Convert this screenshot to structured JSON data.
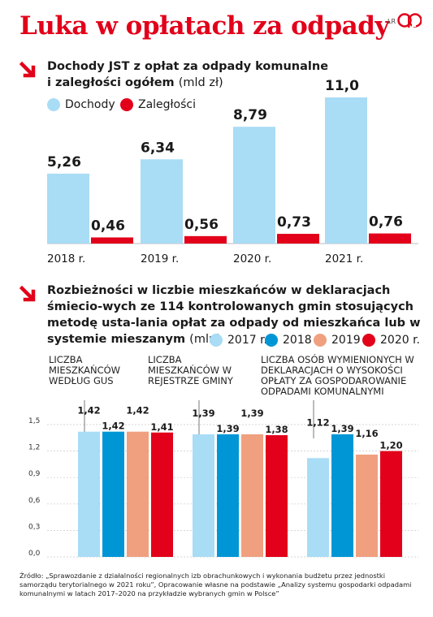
{
  "title": "Luka w opłatach za odpady",
  "credit": "LR",
  "colors": {
    "accent": "#e2001a",
    "light_blue": "#a9dcf5",
    "blue": "#0096d6",
    "salmon": "#f0a07f",
    "red": "#e2001a"
  },
  "section1": {
    "heading_bold_1": "Dochody JST z opłat za odpady komunalne",
    "heading_bold_2": "i zaległości ogółem",
    "heading_unit": "(mld zł)",
    "legend": [
      "Dochody",
      "Zaległości"
    ]
  },
  "section2": {
    "heading_bold": "Rozbieżności w liczbie mieszkańców w deklaracjach śmiecio-wych ze 114 kontrolowanych gmin stosujących metodę usta-lania opłat za odpady od mieszkańca lub w systemie mieszanym",
    "heading_unit": "(mln)",
    "legend": [
      "2017 r.",
      "2018 r.",
      "2019 r.",
      "2020 r."
    ],
    "group_labels": [
      "Liczba mieszkańców według GUS",
      "Liczba mieszkańców w rejestrze gminy",
      "Liczba osób wymienionych w deklaracjach o wysokości opłaty za gospodarowanie odpadami komunalnymi"
    ]
  },
  "source": "Źródło: „Sprawozdanie z działalności regionalnych izb obrachunkowych i wykonania budżetu przez jednostki samorządu terytorialnego w 2021 roku”, Opracowanie własne na podstawie „Analizy systemu gospodarki odpadami komunalnymi w latach 2017–2020 na przykładzie wybranych gmin w Polsce”",
  "chart_data": [
    {
      "type": "bar",
      "categories": [
        "2018 r.",
        "2019 r.",
        "2020 r.",
        "2021 r."
      ],
      "series": [
        {
          "name": "Dochody",
          "values": [
            5.26,
            6.34,
            8.79,
            11.0
          ],
          "labels": [
            "5,26",
            "6,34",
            "8,79",
            "11,0"
          ],
          "color": "#a9dcf5"
        },
        {
          "name": "Zaległości",
          "values": [
            0.46,
            0.56,
            0.73,
            0.76
          ],
          "labels": [
            "0,46",
            "0,56",
            "0,73",
            "0,76"
          ],
          "color": "#e2001a"
        }
      ],
      "ylim": [
        0,
        11.0
      ]
    },
    {
      "type": "bar",
      "categories": [
        "GUS",
        "Rejestr gminy",
        "Deklaracje"
      ],
      "series": [
        {
          "name": "2017 r.",
          "values": [
            1.42,
            1.39,
            1.12
          ],
          "labels": [
            "1,42",
            "1,39",
            "1,12"
          ],
          "color": "#a9dcf5"
        },
        {
          "name": "2018 r.",
          "values": [
            1.42,
            1.39,
            1.39
          ],
          "labels": [
            "1,42",
            "1,39",
            "1,39"
          ],
          "color": "#0096d6"
        },
        {
          "name": "2019 r.",
          "values": [
            1.42,
            1.39,
            1.16
          ],
          "labels": [
            "1,42",
            "1,39",
            "1,16"
          ],
          "color": "#f0a07f"
        },
        {
          "name": "2020 r.",
          "values": [
            1.41,
            1.38,
            1.2
          ],
          "labels": [
            "1,41",
            "1,38",
            "1,20"
          ],
          "color": "#e2001a"
        }
      ],
      "yticks": [
        "0,0",
        "0,3",
        "0,6",
        "0,9",
        "1,2",
        "1,5"
      ],
      "ylim": [
        0,
        1.5
      ]
    }
  ]
}
